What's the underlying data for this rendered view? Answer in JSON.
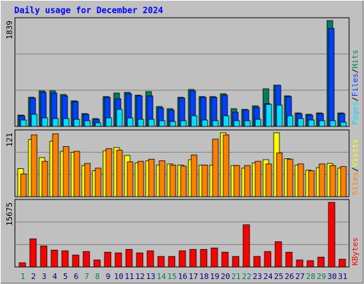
{
  "chart_data": [
    {
      "type": "bar",
      "title": "Daily usage for December 2024",
      "ylim": [
        0,
        1839
      ],
      "yticks": [
        1839
      ],
      "series": [
        {
          "name": "Hits",
          "color": "#00805c",
          "values": [
            197,
            506,
            617,
            617,
            555,
            444,
            222,
            136,
            518,
            580,
            592,
            543,
            605,
            346,
            308,
            506,
            642,
            518,
            518,
            568,
            308,
            296,
            358,
            654,
            716,
            531,
            234,
            210,
            234,
            1839,
            234
          ]
        },
        {
          "name": "Files",
          "color": "#0040ff",
          "values": [
            185,
            494,
            592,
            580,
            531,
            432,
            210,
            123,
            506,
            481,
            568,
            531,
            531,
            321,
            284,
            494,
            617,
            506,
            506,
            543,
            247,
            284,
            333,
            395,
            716,
            518,
            222,
            197,
            222,
            1703,
            222
          ]
        },
        {
          "name": "Pages",
          "color": "#00e0ff",
          "values": [
            111,
            210,
            148,
            136,
            136,
            123,
            99,
            62,
            148,
            296,
            148,
            123,
            123,
            99,
            86,
            99,
            185,
            111,
            99,
            185,
            99,
            99,
            123,
            383,
            370,
            185,
            136,
            111,
            99,
            99,
            74
          ]
        }
      ]
    },
    {
      "type": "bar",
      "ylim": [
        0,
        121
      ],
      "yticks": [
        121
      ],
      "series": [
        {
          "name": "Visits",
          "color": "#ffff00",
          "values": [
            53,
            108,
            74,
            105,
            86,
            84,
            59,
            49,
            87,
            93,
            78,
            64,
            68,
            60,
            62,
            60,
            70,
            60,
            60,
            121,
            59,
            54,
            64,
            70,
            121,
            72,
            60,
            50,
            55,
            63,
            54
          ]
        },
        {
          "name": "Sites",
          "color": "#ff8000",
          "values": [
            43,
            117,
            67,
            119,
            95,
            86,
            63,
            54,
            91,
            88,
            66,
            67,
            71,
            68,
            60,
            58,
            79,
            60,
            109,
            117,
            59,
            59,
            67,
            62,
            83,
            71,
            62,
            49,
            62,
            59,
            57
          ]
        }
      ]
    },
    {
      "type": "bar",
      "ylim": [
        0,
        15675
      ],
      "yticks": [
        15675
      ],
      "categories": [
        "1",
        "2",
        "3",
        "4",
        "5",
        "6",
        "7",
        "8",
        "9",
        "10",
        "11",
        "12",
        "13",
        "14",
        "15",
        "16",
        "17",
        "18",
        "19",
        "20",
        "21",
        "22",
        "23",
        "24",
        "25",
        "26",
        "27",
        "28",
        "29",
        "30",
        "31"
      ],
      "label_colors": [
        "#00805c",
        "#000080",
        "#000080",
        "#000080",
        "#000080",
        "#000080",
        "#00805c",
        "#00805c",
        "#000080",
        "#000080",
        "#000080",
        "#000080",
        "#000080",
        "#00805c",
        "#00805c",
        "#000080",
        "#000080",
        "#000080",
        "#000080",
        "#000080",
        "#00805c",
        "#00805c",
        "#000080",
        "#000080",
        "#000080",
        "#000080",
        "#000080",
        "#00805c",
        "#00805c",
        "#000080",
        "#000080"
      ],
      "series": [
        {
          "name": "KBytes",
          "color": "#ff0000",
          "values": [
            1022,
            6816,
            5112,
            4090,
            3919,
            2897,
            3749,
            1704,
            3578,
            3408,
            4260,
            3408,
            3919,
            2556,
            2556,
            3919,
            4260,
            4260,
            4601,
            3578,
            2556,
            10224,
            2556,
            3749,
            6134,
            3578,
            1704,
            1534,
            2386,
            15675,
            1874
          ]
        }
      ]
    }
  ]
}
